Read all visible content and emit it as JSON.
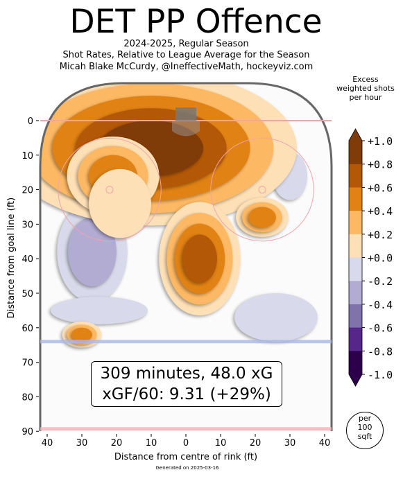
{
  "title": "DET PP Offence",
  "subtitle_lines": [
    "2024-2025, Regular Season",
    "Shot Rates, Relative to League Average for the Season",
    "Micah Blake McCurdy, @IneffectiveMath, hockeyviz.com"
  ],
  "colorbar": {
    "title_lines": [
      "Excess",
      "weighted shots",
      "per hour"
    ],
    "ticks": [
      "+1.0",
      "+0.8",
      "+0.6",
      "+0.4",
      "+0.2",
      "+0.0",
      "-0.2",
      "-0.4",
      "-0.6",
      "-0.8",
      "-1.0"
    ],
    "colors": [
      "#7f3b08",
      "#b35806",
      "#e08214",
      "#fdb863",
      "#fee0b6",
      "#ffffff",
      "#d8daeb",
      "#b2abd2",
      "#8073ac",
      "#542788",
      "#2d004b"
    ]
  },
  "annotation_lines": [
    "309 minutes, 48.0 xG",
    "xGF/60: 9.31 (+29%)"
  ],
  "area_label_lines": [
    "per",
    "100",
    "sqft"
  ],
  "footer": "Generated on 2025-03-16",
  "chart_data": {
    "type": "heatmap",
    "xlabel": "Distance from centre of rink (ft)",
    "ylabel": "Distance from goal line (ft)",
    "xlim": [
      -42,
      42
    ],
    "ylim": [
      90,
      -11
    ],
    "x_ticks": [
      -40,
      -30,
      -20,
      -10,
      0,
      10,
      20,
      30,
      40
    ],
    "x_tick_labels": [
      "40",
      "30",
      "20",
      "10",
      "0",
      "10",
      "20",
      "30",
      "40"
    ],
    "y_ticks": [
      0,
      10,
      20,
      30,
      40,
      50,
      60,
      70,
      80,
      90
    ],
    "y_tick_labels": [
      "0",
      "10",
      "20",
      "30",
      "40",
      "50",
      "60",
      "70",
      "80",
      "90"
    ],
    "value_range": [
      -1.0,
      1.0
    ],
    "regions": [
      {
        "x": -10,
        "y": 8,
        "rx": 15,
        "ry": 8,
        "value": 1.0
      },
      {
        "x": -21,
        "y": 16,
        "rx": 7,
        "ry": 6,
        "value": 0.6
      },
      {
        "x": -19,
        "y": 24,
        "rx": 9,
        "ry": 10,
        "value": 0.2
      },
      {
        "x": 4,
        "y": 40,
        "rx": 5,
        "ry": 7,
        "value": 0.8
      },
      {
        "x": 22,
        "y": 28,
        "rx": 4,
        "ry": 3,
        "value": 0.6
      },
      {
        "x": -30,
        "y": 62,
        "rx": 3,
        "ry": 2,
        "value": 0.6
      },
      {
        "x": 5,
        "y": 17,
        "rx": 3,
        "ry": 2,
        "value": -0.6
      },
      {
        "x": -27,
        "y": 38,
        "rx": 7,
        "ry": 10,
        "value": -0.4
      },
      {
        "x": 30,
        "y": 16,
        "rx": 5,
        "ry": 7,
        "value": -0.2
      },
      {
        "x": 26,
        "y": 57,
        "rx": 12,
        "ry": 7,
        "value": -0.2
      },
      {
        "x": -25,
        "y": 55,
        "rx": 14,
        "ry": 4,
        "value": -0.2
      }
    ]
  }
}
